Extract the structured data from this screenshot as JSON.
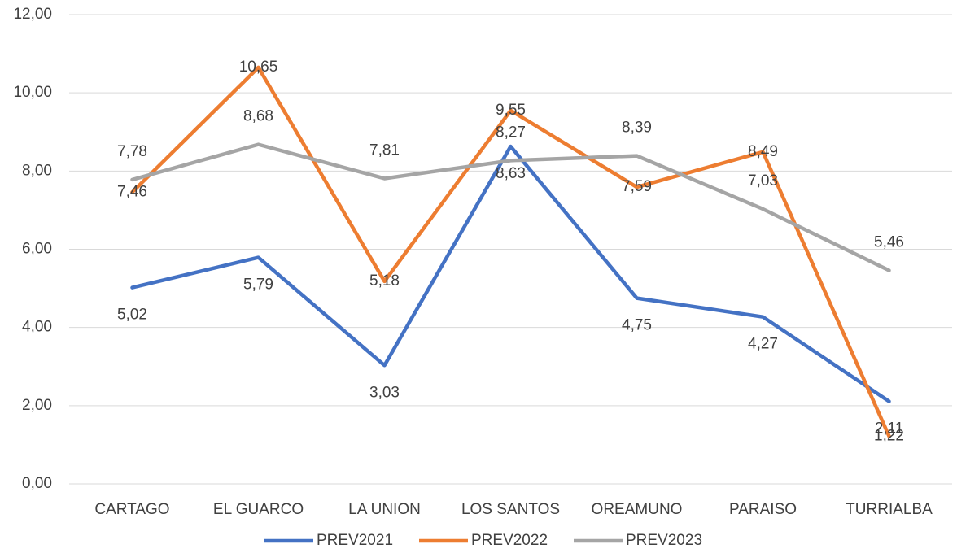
{
  "chart_data": {
    "type": "line",
    "categories": [
      "CARTAGO",
      "EL GUARCO",
      "LA UNION",
      "LOS SANTOS",
      "OREAMUNO",
      "PARAISO",
      "TURRIALBA"
    ],
    "series": [
      {
        "name": "PREV2021",
        "color": "#4472c4",
        "values": [
          5.02,
          5.79,
          3.03,
          8.63,
          4.75,
          4.27,
          2.11
        ],
        "value_labels": [
          "5,02",
          "5,79",
          "3,03",
          "8,63",
          "4,75",
          "4,27",
          "2,11"
        ]
      },
      {
        "name": "PREV2022",
        "color": "#ed7d31",
        "values": [
          7.46,
          10.65,
          5.18,
          9.55,
          7.59,
          8.49,
          1.22
        ],
        "value_labels": [
          "7,46",
          "10,65",
          "5,18",
          "9,55",
          "7,59",
          "8,49",
          "1,22"
        ]
      },
      {
        "name": "PREV2023",
        "color": "#a5a5a5",
        "values": [
          7.78,
          8.68,
          7.81,
          8.27,
          8.39,
          7.03,
          5.46
        ],
        "value_labels": [
          "7,78",
          "8,68",
          "7,81",
          "8,27",
          "8,39",
          "7,03",
          "5,46"
        ]
      }
    ],
    "ylim": [
      0,
      12
    ],
    "yticks": [
      {
        "value": 0,
        "label": "0,00"
      },
      {
        "value": 2,
        "label": "2,00"
      },
      {
        "value": 4,
        "label": "4,00"
      },
      {
        "value": 6,
        "label": "6,00"
      },
      {
        "value": 8,
        "label": "8,00"
      },
      {
        "value": 10,
        "label": "10,00"
      },
      {
        "value": 12,
        "label": "12,00"
      }
    ],
    "grid": true,
    "legend": "bottom"
  }
}
